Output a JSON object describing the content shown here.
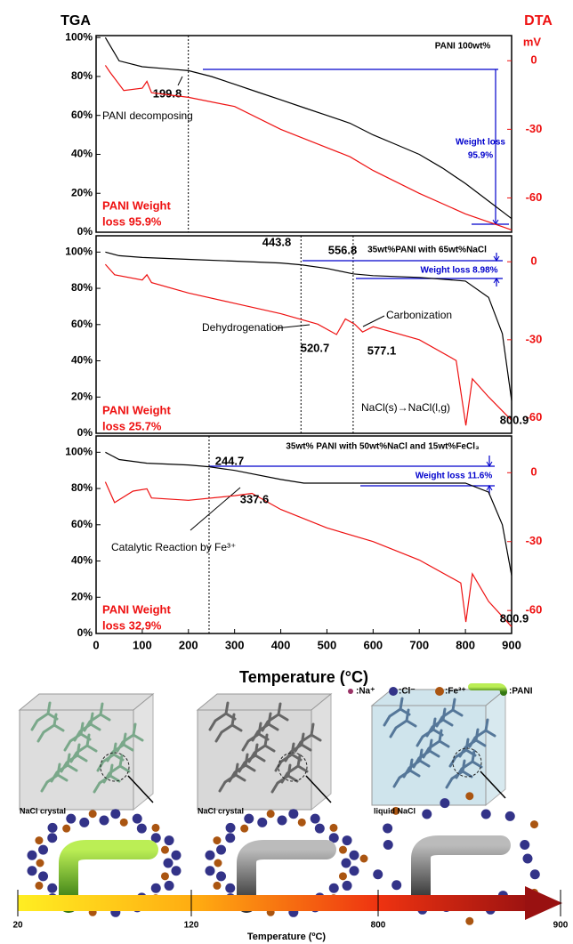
{
  "chart_data": [
    {
      "type": "line",
      "ylabel": "TGA",
      "y2label": "DTA",
      "y2unit": "mV",
      "xlim": [
        0,
        900
      ],
      "ylim": [
        0,
        101
      ],
      "y2lim": [
        -75,
        11
      ],
      "yticks": [
        {
          "value": 0,
          "label": "0%"
        },
        {
          "value": 20,
          "label": "20%"
        },
        {
          "value": 40,
          "label": "40%"
        },
        {
          "value": 60,
          "label": "60%"
        },
        {
          "value": 80,
          "label": "80%"
        },
        {
          "value": 100,
          "label": "100%"
        }
      ],
      "y2ticks": [
        0,
        -30,
        -60
      ],
      "vlines": [
        199.8
      ],
      "annotations": [
        "PANI 100wt%",
        "PANI decomposing",
        "Weight loss",
        "95.9%",
        "PANI Weight",
        "loss 95.9%"
      ],
      "series": [
        {
          "color": "#000000",
          "x": [
            20,
            50,
            100,
            150,
            200,
            250,
            300,
            350,
            400,
            450,
            500,
            550,
            600,
            650,
            700,
            750,
            800,
            850,
            900
          ],
          "values": [
            100,
            88,
            85,
            84,
            83,
            80,
            76,
            72,
            68,
            64,
            60,
            56,
            50,
            45,
            40,
            33,
            25,
            16,
            7
          ]
        },
        {
          "color": "#ee1111",
          "axis": "y2",
          "x": [
            20,
            30,
            60,
            100,
            110,
            120,
            200,
            300,
            400,
            500,
            550,
            600,
            700,
            800,
            900
          ],
          "values": [
            -2,
            -5,
            -13,
            -12,
            -9,
            -14,
            -16,
            -20,
            -30,
            -38,
            -42,
            -48,
            -58,
            -67,
            -74
          ]
        }
      ]
    },
    {
      "type": "line",
      "xlim": [
        0,
        900
      ],
      "ylim": [
        0,
        109
      ],
      "y2lim": [
        -66,
        10
      ],
      "yticks": [
        {
          "value": 0,
          "label": "0%"
        },
        {
          "value": 20,
          "label": "20%"
        },
        {
          "value": 40,
          "label": "40%"
        },
        {
          "value": 60,
          "label": "60%"
        },
        {
          "value": 80,
          "label": "80%"
        },
        {
          "value": 100,
          "label": "100%"
        }
      ],
      "y2ticks": [
        0,
        -30,
        -60
      ],
      "vlines": [
        443.8,
        556.8
      ],
      "annotations": [
        "35wt%PANI with 65wt%NaCl",
        "Weight loss 8.98%",
        "Dehydrogenation",
        "Carbonization",
        "520.7",
        "577.1",
        "NaCl(s)→NaCl(l,g)",
        "800.9",
        "PANI Weight",
        "loss 25.7%"
      ],
      "series": [
        {
          "color": "#000000",
          "x": [
            20,
            50,
            100,
            200,
            300,
            400,
            443.8,
            500,
            556.8,
            600,
            700,
            800,
            850,
            880,
            900
          ],
          "values": [
            100,
            98,
            97,
            96,
            95,
            94,
            93,
            91,
            88,
            87,
            86,
            84,
            75,
            55,
            18
          ]
        },
        {
          "color": "#ee1111",
          "axis": "y2",
          "x": [
            20,
            40,
            100,
            110,
            120,
            200,
            300,
            400,
            480,
            520.7,
            540,
            560,
            577.1,
            600,
            700,
            780,
            800.9,
            815,
            850,
            900
          ],
          "values": [
            -1,
            -5,
            -7,
            -5,
            -8,
            -12,
            -16,
            -20,
            -24,
            -28,
            -22,
            -24,
            -27,
            -25,
            -30,
            -38,
            -63,
            -45,
            -52,
            -61
          ]
        }
      ]
    },
    {
      "type": "line",
      "xlabel": "Temperature (°C)",
      "xlim": [
        0,
        900
      ],
      "ylim": [
        0,
        109
      ],
      "y2lim": [
        -70,
        16
      ],
      "xticks": [
        0,
        100,
        200,
        300,
        400,
        500,
        600,
        700,
        800,
        900
      ],
      "yticks": [
        {
          "value": 0,
          "label": "0%"
        },
        {
          "value": 20,
          "label": "20%"
        },
        {
          "value": 40,
          "label": "40%"
        },
        {
          "value": 60,
          "label": "60%"
        },
        {
          "value": 80,
          "label": "80%"
        },
        {
          "value": 100,
          "label": "100%"
        }
      ],
      "y2ticks": [
        0,
        -30,
        -60
      ],
      "vlines": [
        244.7
      ],
      "annotations": [
        "35wt% PANI with 50wt%NaCl and 15wt%FeCl₃",
        "Weight loss 11.6%",
        "337.6",
        "Catalytic Reaction by Fe³⁺",
        "800.9",
        "PANI Weight",
        "loss 32.9%"
      ],
      "series": [
        {
          "color": "#000000",
          "x": [
            20,
            50,
            110,
            200,
            244.7,
            300,
            400,
            450,
            600,
            700,
            800,
            850,
            880,
            900
          ],
          "values": [
            100,
            96,
            94,
            93,
            92,
            90,
            85,
            83,
            83,
            83,
            83,
            78,
            60,
            32
          ]
        },
        {
          "color": "#ee1111",
          "axis": "y2",
          "x": [
            20,
            40,
            80,
            110,
            120,
            200,
            300,
            337.6,
            400,
            500,
            600,
            700,
            790,
            800.9,
            815,
            850,
            900
          ],
          "values": [
            -4,
            -13,
            -8,
            -7,
            -11,
            -12,
            -10,
            -9,
            -16,
            -24,
            -30,
            -38,
            -48,
            -65,
            -44,
            -56,
            -67
          ]
        }
      ]
    }
  ],
  "schematic": {
    "legend": [
      ":Na⁺",
      ":Cl⁻",
      ":Fe³⁺",
      ":PANI"
    ],
    "labels": [
      "NaCl crystal",
      "NaCl crystal",
      "liquid NaCl"
    ],
    "scale": {
      "ticks": [
        20,
        120,
        800,
        900
      ],
      "title": "Temperature (ºC)"
    }
  }
}
